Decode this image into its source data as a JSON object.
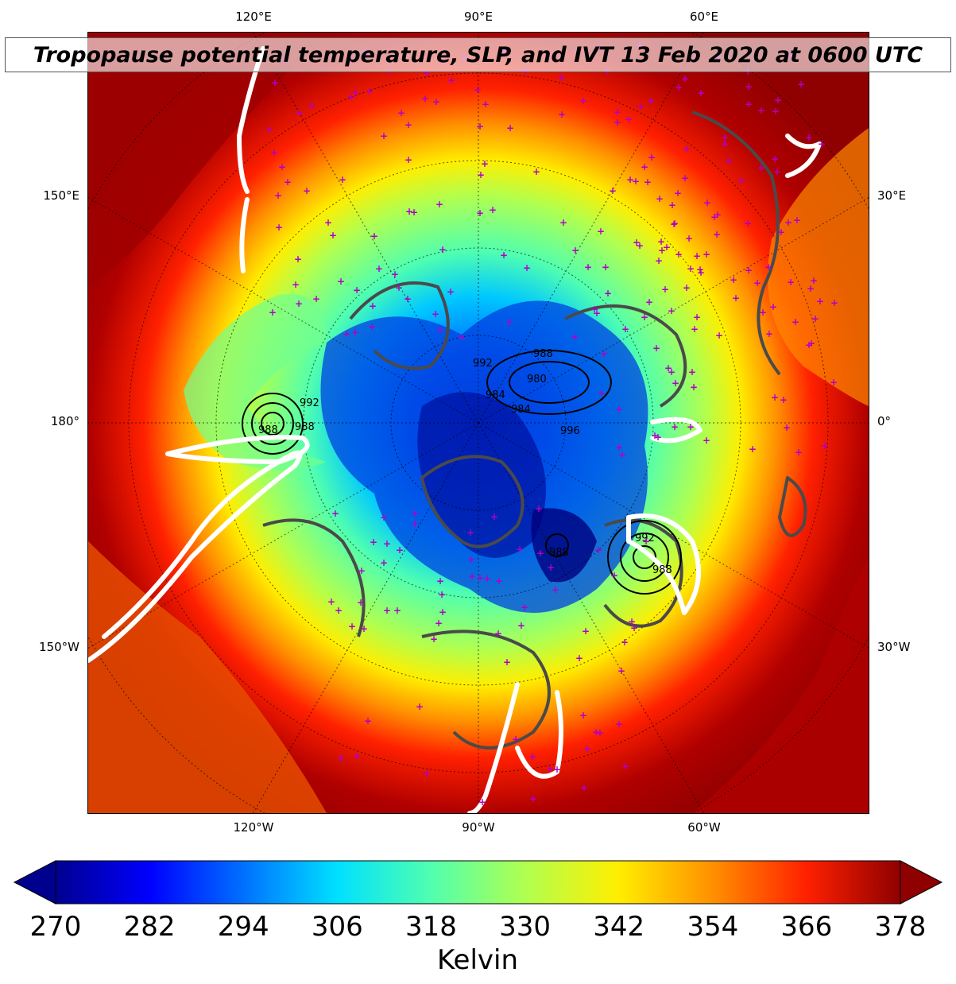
{
  "title": "Tropopause potential temperature, SLP, and IVT 13 Feb 2020 at 0600 UTC",
  "lon_labels_top": [
    "120°E",
    "90°E",
    "60°E"
  ],
  "lon_labels_bottom": [
    "120°W",
    "90°W",
    "60°W"
  ],
  "lat_labels_left": [
    "150°E",
    "180°",
    "150°W"
  ],
  "lat_labels_right": [
    "30°E",
    "0°",
    "30°W"
  ],
  "colorbar": {
    "label": "Kelvin",
    "min": 270,
    "max": 378,
    "ticks": [
      "270",
      "282",
      "294",
      "306",
      "318",
      "330",
      "342",
      "354",
      "366",
      "378"
    ],
    "colormap": [
      "#00008f",
      "#0000ff",
      "#0070ff",
      "#00e0ff",
      "#50ffaf",
      "#b0ff50",
      "#ffee00",
      "#ff9000",
      "#ff2000",
      "#8f0000"
    ]
  },
  "slp_contour_labels": [
    "992",
    "988",
    "980",
    "984",
    "996",
    "988",
    "992",
    "988",
    "988",
    "992",
    "984",
    "988"
  ],
  "colors": {
    "ivt_contour": "#ffffff",
    "coastline": "#4a4a4a",
    "surface_marker": "#b000c8",
    "background_field_edge": "#8f0000"
  }
}
